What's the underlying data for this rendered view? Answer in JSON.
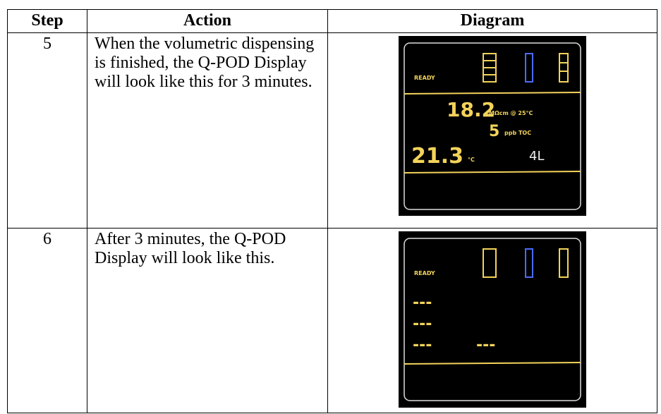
{
  "table": {
    "headers": [
      "Step",
      "Action",
      "Diagram"
    ],
    "rows": [
      {
        "step": "5",
        "action": "When the volumetric dispensing is finished, the Q-POD Display will look like this for 3 minutes.",
        "display": {
          "status": "READY",
          "resistivity": "18.2",
          "resistivity_unit": "MΩcm @ 25°C",
          "toc": "5",
          "toc_unit": "ppb TOC",
          "temperature": "21.3",
          "temperature_unit": "°C",
          "volume": "4L"
        }
      },
      {
        "step": "6",
        "action": "After 3 minutes, the Q-POD Display will look like this.",
        "display": {
          "status": "READY",
          "resistivity": "---",
          "toc": "---",
          "temperature": "---",
          "volume": "---"
        }
      }
    ]
  }
}
